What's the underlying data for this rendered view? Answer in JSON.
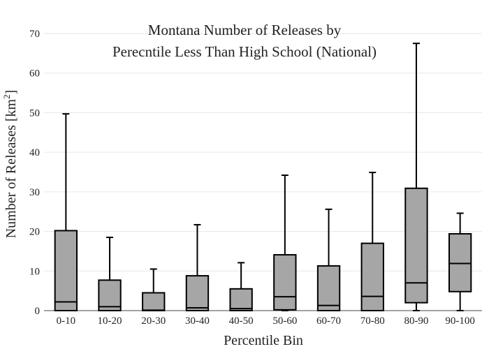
{
  "chart_data": {
    "type": "box",
    "title_lines": [
      "Montana Number of Releases by",
      "Perecntile Less Than High School (National)"
    ],
    "xlabel": "Percentile Bin",
    "ylabel": "Number of Releases  [km",
    "ylabel_sup": "2",
    "ylabel_close": "]",
    "ylim": [
      0,
      70
    ],
    "yticks": [
      0,
      10,
      20,
      30,
      40,
      50,
      60,
      70
    ],
    "grid": true,
    "colors": {
      "box_fill": "#a6a6a6",
      "box_stroke": "#000000",
      "grid": "#e6e6e6"
    },
    "categories": [
      "0-10",
      "10-20",
      "20-30",
      "30-40",
      "40-50",
      "50-60",
      "60-70",
      "70-80",
      "80-90",
      "90-100"
    ],
    "boxes": [
      {
        "category": "0-10",
        "min": 0,
        "q1": 0,
        "median": 2.2,
        "q3": 20.2,
        "max": 49.7
      },
      {
        "category": "10-20",
        "min": 0,
        "q1": 0,
        "median": 1.0,
        "q3": 7.7,
        "max": 18.5
      },
      {
        "category": "20-30",
        "min": 0,
        "q1": 0,
        "median": 0.1,
        "q3": 4.5,
        "max": 10.5
      },
      {
        "category": "30-40",
        "min": 0,
        "q1": 0,
        "median": 0.7,
        "q3": 8.8,
        "max": 21.7
      },
      {
        "category": "40-50",
        "min": 0,
        "q1": 0,
        "median": 0.5,
        "q3": 5.5,
        "max": 12.1
      },
      {
        "category": "50-60",
        "min": 0,
        "q1": 0.2,
        "median": 3.5,
        "q3": 14.1,
        "max": 34.2
      },
      {
        "category": "60-70",
        "min": 0,
        "q1": 0,
        "median": 1.3,
        "q3": 11.3,
        "max": 25.6
      },
      {
        "category": "70-80",
        "min": 0,
        "q1": 0,
        "median": 3.6,
        "q3": 17.0,
        "max": 34.9
      },
      {
        "category": "80-90",
        "min": 0,
        "q1": 2.0,
        "median": 7.0,
        "q3": 30.9,
        "max": 67.5
      },
      {
        "category": "90-100",
        "min": 0,
        "q1": 4.8,
        "median": 11.9,
        "q3": 19.4,
        "max": 24.6
      }
    ]
  }
}
